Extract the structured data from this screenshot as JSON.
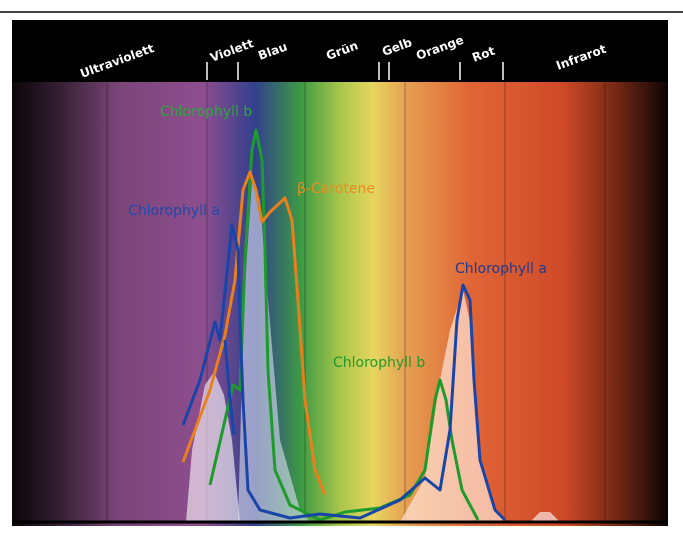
{
  "bands": [
    "Ultraviolett",
    "Violett",
    "Blau",
    "Grün",
    "Gelb",
    "Orange",
    "Rot",
    "Infrarot"
  ],
  "curve_labels": [
    "Chlorophyll b",
    "β-Carotene",
    "Chlorophyll a",
    "Chlorophyll a",
    "Chlorophyll b"
  ]
}
